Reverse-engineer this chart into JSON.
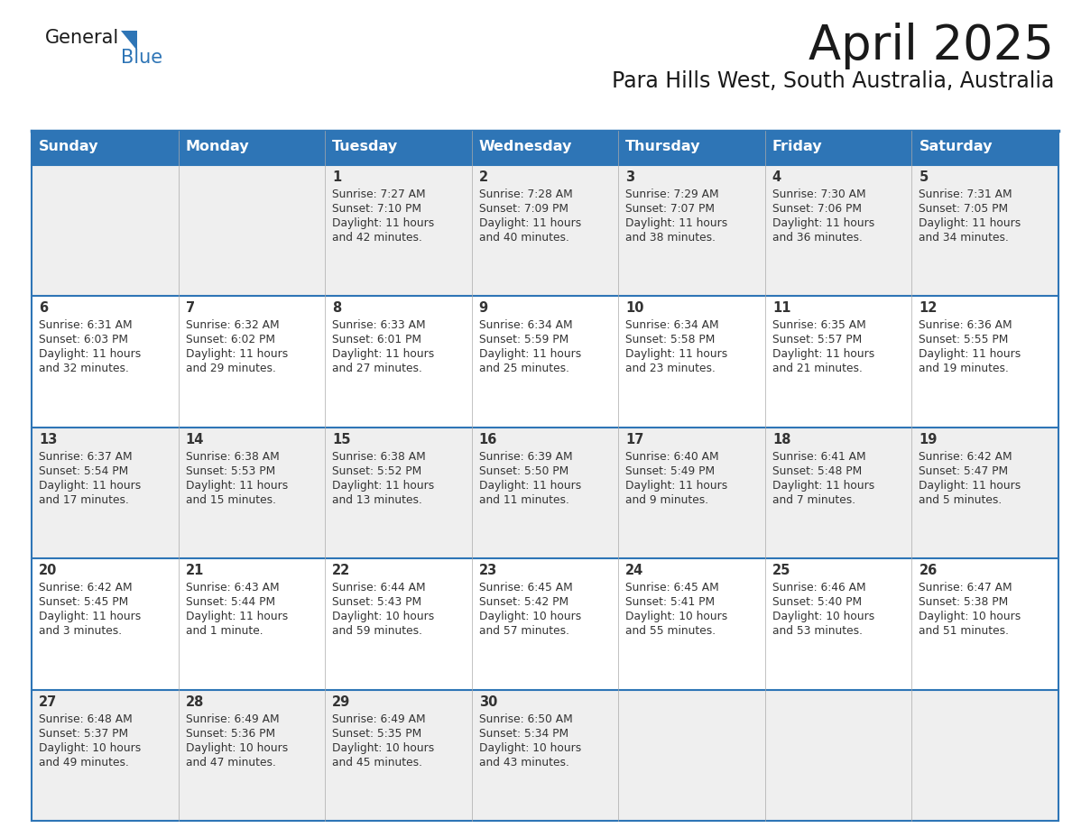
{
  "title": "April 2025",
  "subtitle": "Para Hills West, South Australia, Australia",
  "days_of_week": [
    "Sunday",
    "Monday",
    "Tuesday",
    "Wednesday",
    "Thursday",
    "Friday",
    "Saturday"
  ],
  "header_bg": "#2E75B6",
  "header_text": "#FFFFFF",
  "row_bg_odd": "#EFEFEF",
  "row_bg_even": "#FFFFFF",
  "cell_border": "#2E75B6",
  "title_color": "#1a1a1a",
  "subtitle_color": "#1a1a1a",
  "text_color": "#333333",
  "calendar": [
    [
      {
        "day": null,
        "sunrise": null,
        "sunset": null,
        "daylight": null
      },
      {
        "day": null,
        "sunrise": null,
        "sunset": null,
        "daylight": null
      },
      {
        "day": 1,
        "sunrise": "7:27 AM",
        "sunset": "7:10 PM",
        "daylight": "11 hours\nand 42 minutes."
      },
      {
        "day": 2,
        "sunrise": "7:28 AM",
        "sunset": "7:09 PM",
        "daylight": "11 hours\nand 40 minutes."
      },
      {
        "day": 3,
        "sunrise": "7:29 AM",
        "sunset": "7:07 PM",
        "daylight": "11 hours\nand 38 minutes."
      },
      {
        "day": 4,
        "sunrise": "7:30 AM",
        "sunset": "7:06 PM",
        "daylight": "11 hours\nand 36 minutes."
      },
      {
        "day": 5,
        "sunrise": "7:31 AM",
        "sunset": "7:05 PM",
        "daylight": "11 hours\nand 34 minutes."
      }
    ],
    [
      {
        "day": 6,
        "sunrise": "6:31 AM",
        "sunset": "6:03 PM",
        "daylight": "11 hours\nand 32 minutes."
      },
      {
        "day": 7,
        "sunrise": "6:32 AM",
        "sunset": "6:02 PM",
        "daylight": "11 hours\nand 29 minutes."
      },
      {
        "day": 8,
        "sunrise": "6:33 AM",
        "sunset": "6:01 PM",
        "daylight": "11 hours\nand 27 minutes."
      },
      {
        "day": 9,
        "sunrise": "6:34 AM",
        "sunset": "5:59 PM",
        "daylight": "11 hours\nand 25 minutes."
      },
      {
        "day": 10,
        "sunrise": "6:34 AM",
        "sunset": "5:58 PM",
        "daylight": "11 hours\nand 23 minutes."
      },
      {
        "day": 11,
        "sunrise": "6:35 AM",
        "sunset": "5:57 PM",
        "daylight": "11 hours\nand 21 minutes."
      },
      {
        "day": 12,
        "sunrise": "6:36 AM",
        "sunset": "5:55 PM",
        "daylight": "11 hours\nand 19 minutes."
      }
    ],
    [
      {
        "day": 13,
        "sunrise": "6:37 AM",
        "sunset": "5:54 PM",
        "daylight": "11 hours\nand 17 minutes."
      },
      {
        "day": 14,
        "sunrise": "6:38 AM",
        "sunset": "5:53 PM",
        "daylight": "11 hours\nand 15 minutes."
      },
      {
        "day": 15,
        "sunrise": "6:38 AM",
        "sunset": "5:52 PM",
        "daylight": "11 hours\nand 13 minutes."
      },
      {
        "day": 16,
        "sunrise": "6:39 AM",
        "sunset": "5:50 PM",
        "daylight": "11 hours\nand 11 minutes."
      },
      {
        "day": 17,
        "sunrise": "6:40 AM",
        "sunset": "5:49 PM",
        "daylight": "11 hours\nand 9 minutes."
      },
      {
        "day": 18,
        "sunrise": "6:41 AM",
        "sunset": "5:48 PM",
        "daylight": "11 hours\nand 7 minutes."
      },
      {
        "day": 19,
        "sunrise": "6:42 AM",
        "sunset": "5:47 PM",
        "daylight": "11 hours\nand 5 minutes."
      }
    ],
    [
      {
        "day": 20,
        "sunrise": "6:42 AM",
        "sunset": "5:45 PM",
        "daylight": "11 hours\nand 3 minutes."
      },
      {
        "day": 21,
        "sunrise": "6:43 AM",
        "sunset": "5:44 PM",
        "daylight": "11 hours\nand 1 minute."
      },
      {
        "day": 22,
        "sunrise": "6:44 AM",
        "sunset": "5:43 PM",
        "daylight": "10 hours\nand 59 minutes."
      },
      {
        "day": 23,
        "sunrise": "6:45 AM",
        "sunset": "5:42 PM",
        "daylight": "10 hours\nand 57 minutes."
      },
      {
        "day": 24,
        "sunrise": "6:45 AM",
        "sunset": "5:41 PM",
        "daylight": "10 hours\nand 55 minutes."
      },
      {
        "day": 25,
        "sunrise": "6:46 AM",
        "sunset": "5:40 PM",
        "daylight": "10 hours\nand 53 minutes."
      },
      {
        "day": 26,
        "sunrise": "6:47 AM",
        "sunset": "5:38 PM",
        "daylight": "10 hours\nand 51 minutes."
      }
    ],
    [
      {
        "day": 27,
        "sunrise": "6:48 AM",
        "sunset": "5:37 PM",
        "daylight": "10 hours\nand 49 minutes."
      },
      {
        "day": 28,
        "sunrise": "6:49 AM",
        "sunset": "5:36 PM",
        "daylight": "10 hours\nand 47 minutes."
      },
      {
        "day": 29,
        "sunrise": "6:49 AM",
        "sunset": "5:35 PM",
        "daylight": "10 hours\nand 45 minutes."
      },
      {
        "day": 30,
        "sunrise": "6:50 AM",
        "sunset": "5:34 PM",
        "daylight": "10 hours\nand 43 minutes."
      },
      {
        "day": null,
        "sunrise": null,
        "sunset": null,
        "daylight": null
      },
      {
        "day": null,
        "sunrise": null,
        "sunset": null,
        "daylight": null
      },
      {
        "day": null,
        "sunrise": null,
        "sunset": null,
        "daylight": null
      }
    ]
  ]
}
